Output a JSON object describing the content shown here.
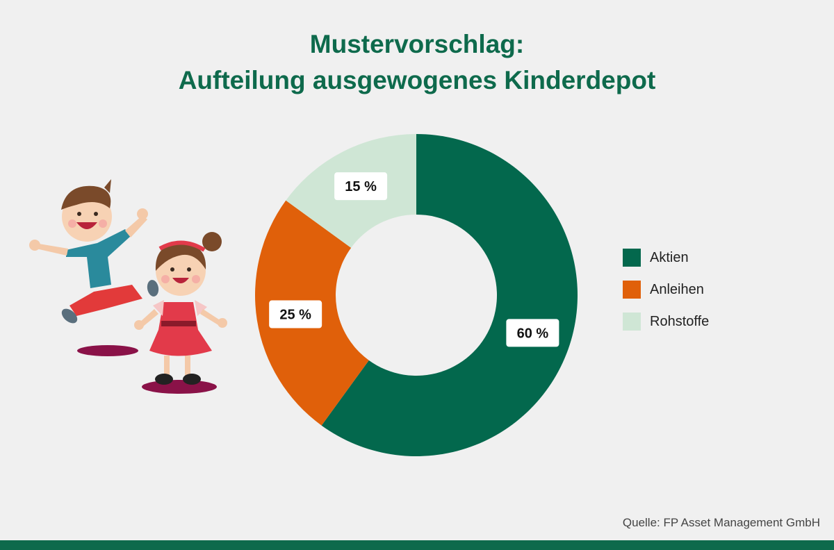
{
  "title": {
    "line1": "Mustervorschlag:",
    "line2": "Aufteilung ausgewogenes Kinderdepot"
  },
  "chart_data": {
    "type": "pie",
    "variant": "donut",
    "title": "Mustervorschlag: Aufteilung ausgewogenes Kinderdepot",
    "categories": [
      "Aktien",
      "Anleihen",
      "Rohstoffe"
    ],
    "values": [
      60,
      25,
      15
    ],
    "value_labels": [
      "60 %",
      "25 %",
      "15 %"
    ],
    "colors": [
      "#03684d",
      "#e0600a",
      "#cfe6d5"
    ],
    "legend_position": "right",
    "start": "top, clockwise"
  },
  "source": "Quelle: FP Asset Management GmbH",
  "colors": {
    "accent": "#0e6a4c",
    "background": "#f0f0f0"
  },
  "illustration": {
    "icon": "children-jumping-illustration"
  }
}
